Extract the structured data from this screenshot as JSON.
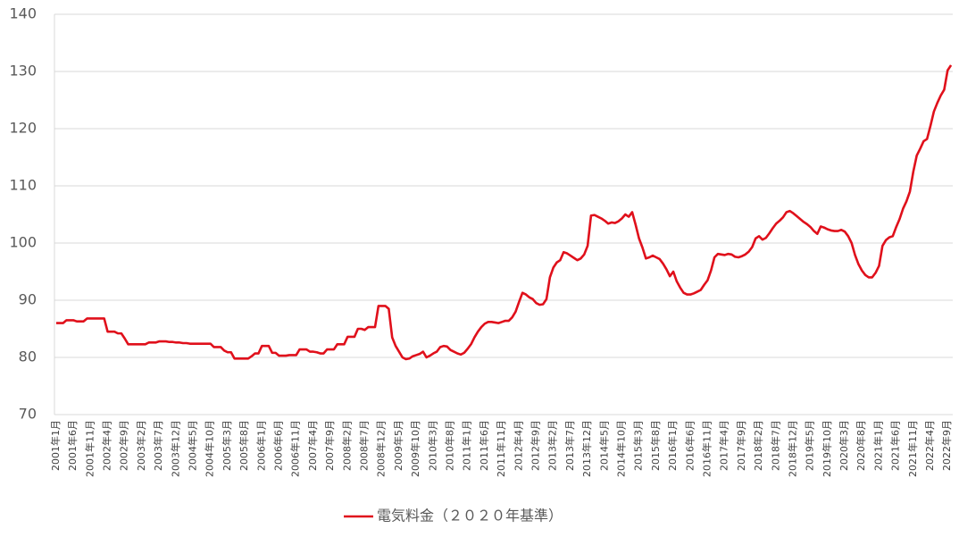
{
  "chart_data": {
    "type": "line",
    "categories": [
      "2001年1月",
      null,
      null,
      null,
      null,
      "2001年6月",
      null,
      null,
      null,
      null,
      "2001年11月",
      null,
      null,
      null,
      null,
      "2002年4月",
      null,
      null,
      null,
      null,
      "2002年9月",
      null,
      null,
      null,
      null,
      "2003年2月",
      null,
      null,
      null,
      null,
      "2003年7月",
      null,
      null,
      null,
      null,
      "2003年12月",
      null,
      null,
      null,
      null,
      "2004年5月",
      null,
      null,
      null,
      null,
      "2004年10月",
      null,
      null,
      null,
      null,
      "2005年3月",
      null,
      null,
      null,
      null,
      "2005年8月",
      null,
      null,
      null,
      null,
      "2006年1月",
      null,
      null,
      null,
      null,
      "2006年6月",
      null,
      null,
      null,
      null,
      "2006年11月",
      null,
      null,
      null,
      null,
      "2007年4月",
      null,
      null,
      null,
      null,
      "2007年9月",
      null,
      null,
      null,
      null,
      "2008年2月",
      null,
      null,
      null,
      null,
      "2008年7月",
      null,
      null,
      null,
      null,
      "2008年12月",
      null,
      null,
      null,
      null,
      "2009年5月",
      null,
      null,
      null,
      null,
      "2009年10月",
      null,
      null,
      null,
      null,
      "2010年3月",
      null,
      null,
      null,
      null,
      "2010年8月",
      null,
      null,
      null,
      null,
      "2011年1月",
      null,
      null,
      null,
      null,
      "2011年6月",
      null,
      null,
      null,
      null,
      "2011年11月",
      null,
      null,
      null,
      null,
      "2012年4月",
      null,
      null,
      null,
      null,
      "2012年9月",
      null,
      null,
      null,
      null,
      "2013年2月",
      null,
      null,
      null,
      null,
      "2013年7月",
      null,
      null,
      null,
      null,
      "2013年12月",
      null,
      null,
      null,
      null,
      "2014年5月",
      null,
      null,
      null,
      null,
      "2014年10月",
      null,
      null,
      null,
      null,
      "2015年3月",
      null,
      null,
      null,
      null,
      "2015年8月",
      null,
      null,
      null,
      null,
      "2016年1月",
      null,
      null,
      null,
      null,
      "2016年6月",
      null,
      null,
      null,
      null,
      "2016年11月",
      null,
      null,
      null,
      null,
      "2017年4月",
      null,
      null,
      null,
      null,
      "2017年9月",
      null,
      null,
      null,
      null,
      "2018年2月",
      null,
      null,
      null,
      null,
      "2018年7月",
      null,
      null,
      null,
      null,
      "2018年12月",
      null,
      null,
      null,
      null,
      "2019年5月",
      null,
      null,
      null,
      null,
      "2019年10月",
      null,
      null,
      null,
      null,
      "2020年3月",
      null,
      null,
      null,
      null,
      "2020年8月",
      null,
      null,
      null,
      null,
      "2021年1月",
      null,
      null,
      null,
      null,
      "2021年6月",
      null,
      null,
      null,
      null,
      "2021年11月",
      null,
      null,
      null,
      null,
      "2022年4月",
      null,
      null,
      null,
      null,
      "2022年9月",
      null
    ],
    "series": [
      {
        "name": "電気料金（２０２０年基準）",
        "color": "#e0101b",
        "values": [
          86,
          86,
          86,
          86.5,
          86.5,
          86.5,
          86.3,
          86.3,
          86.3,
          86.8,
          86.8,
          86.8,
          86.8,
          86.8,
          86.8,
          84.5,
          84.5,
          84.5,
          84.2,
          84.2,
          83.3,
          82.3,
          82.3,
          82.3,
          82.3,
          82.3,
          82.3,
          82.6,
          82.6,
          82.6,
          82.8,
          82.8,
          82.8,
          82.7,
          82.7,
          82.6,
          82.6,
          82.5,
          82.5,
          82.4,
          82.4,
          82.4,
          82.4,
          82.4,
          82.4,
          82.4,
          81.8,
          81.8,
          81.8,
          81.2,
          80.9,
          80.9,
          79.8,
          79.8,
          79.8,
          79.8,
          79.8,
          80.2,
          80.7,
          80.7,
          82,
          82,
          82,
          80.8,
          80.8,
          80.3,
          80.3,
          80.3,
          80.4,
          80.4,
          80.4,
          81.4,
          81.4,
          81.4,
          81,
          81,
          80.9,
          80.7,
          80.7,
          81.4,
          81.4,
          81.4,
          82.3,
          82.3,
          82.3,
          83.6,
          83.6,
          83.6,
          85,
          85,
          84.8,
          85.3,
          85.3,
          85.3,
          89,
          89,
          89,
          88.5,
          83.5,
          82,
          81,
          80,
          79.7,
          79.8,
          80.2,
          80.4,
          80.6,
          81,
          80,
          80.3,
          80.7,
          81,
          81.8,
          82,
          81.9,
          81.3,
          81,
          80.7,
          80.5,
          80.8,
          81.5,
          82.3,
          83.5,
          84.5,
          85.3,
          85.9,
          86.2,
          86.2,
          86.1,
          86,
          86.2,
          86.4,
          86.4,
          87,
          88,
          89.7,
          91.3,
          91,
          90.5,
          90.2,
          89.5,
          89.2,
          89.3,
          90.2,
          94,
          95.7,
          96.6,
          97,
          98.4,
          98.2,
          97.8,
          97.4,
          97,
          97.3,
          98,
          99.5,
          104.8,
          104.9,
          104.6,
          104.3,
          103.9,
          103.4,
          103.6,
          103.5,
          103.8,
          104.3,
          105,
          104.6,
          105.4,
          103.2,
          100.8,
          99.2,
          97.3,
          97.5,
          97.8,
          97.5,
          97.2,
          96.4,
          95.4,
          94.2,
          95,
          93.3,
          92.2,
          91.3,
          91,
          91,
          91.2,
          91.5,
          91.8,
          92.7,
          93.5,
          95.2,
          97.5,
          98.1,
          98,
          97.9,
          98.1,
          98,
          97.6,
          97.5,
          97.7,
          98,
          98.5,
          99.3,
          100.8,
          101.2,
          100.6,
          100.9,
          101.7,
          102.6,
          103.4,
          103.9,
          104.5,
          105.4,
          105.6,
          105.2,
          104.7,
          104.2,
          103.7,
          103.3,
          102.8,
          102.1,
          101.6,
          102.9,
          102.7,
          102.4,
          102.2,
          102.1,
          102.1,
          102.3,
          102,
          101.2,
          100,
          97.9,
          96.3,
          95.2,
          94.4,
          94,
          94,
          94.8,
          96,
          99.5,
          100.5,
          101,
          101.2,
          102.8,
          104.2,
          106,
          107.3,
          109,
          112.5,
          115.3,
          116.5,
          117.8,
          118.2,
          120.5,
          123,
          124.5,
          125.8,
          126.8,
          130.2,
          131.1
        ]
      }
    ],
    "ylim": [
      70,
      140
    ],
    "yticks": [
      70,
      80,
      90,
      100,
      110,
      120,
      130,
      140
    ],
    "grid": true,
    "legend": "bottom"
  }
}
